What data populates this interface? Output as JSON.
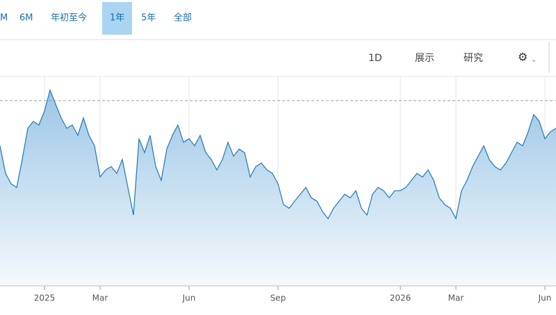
{
  "toolbar": {
    "ranges": [
      "M",
      "6M",
      "年初至今",
      "1年",
      "5年",
      "全部"
    ],
    "active": 3
  },
  "controls": [
    "1D",
    "展示",
    "研究"
  ],
  "chart_data": {
    "type": "area",
    "categories": [
      null,
      null,
      null,
      null,
      null,
      null,
      null,
      null,
      "2025",
      null,
      null,
      null,
      null,
      null,
      null,
      null,
      null,
      null,
      "Mar",
      null,
      null,
      null,
      null,
      null,
      null,
      null,
      null,
      null,
      null,
      null,
      null,
      null,
      null,
      null,
      "Jun",
      null,
      null,
      null,
      null,
      null,
      null,
      null,
      null,
      null,
      null,
      null,
      null,
      null,
      null,
      null,
      "Sep",
      null,
      null,
      null,
      null,
      null,
      null,
      null,
      null,
      null,
      null,
      null,
      null,
      null,
      null,
      null,
      null,
      null,
      null,
      null,
      null,
      null,
      "2026",
      null,
      null,
      null,
      null,
      null,
      null,
      null,
      null,
      null,
      "Mar",
      null,
      null,
      null,
      null,
      null,
      null,
      null,
      null,
      null,
      null,
      null,
      null,
      null,
      null,
      null,
      "Jun",
      null,
      null
    ],
    "series": [
      {
        "color": "#2b7fb8",
        "values": [
          67.3,
          54,
          49,
          47.3,
          60.7,
          75.7,
          79,
          77.3,
          84,
          94,
          87.3,
          80.7,
          75.7,
          77.3,
          72.3,
          80.7,
          72.3,
          67.3,
          52.3,
          55.7,
          57.3,
          54,
          60.7,
          47.3,
          34,
          70.7,
          64,
          72.3,
          57.3,
          50.7,
          65.7,
          72.3,
          77.3,
          69,
          70.7,
          67.3,
          72.3,
          64,
          60.7,
          55.7,
          60.7,
          69,
          62.3,
          65.7,
          64,
          52.3,
          57.3,
          59,
          55.7,
          54,
          49,
          39,
          37.3,
          40.7,
          44,
          47.3,
          42.3,
          40.7,
          35.7,
          32.3,
          37.3,
          40.7,
          44,
          42.3,
          45.7,
          37.3,
          34,
          44,
          47.3,
          45.7,
          42.3,
          45.7,
          45.7,
          47.3,
          50.7,
          54,
          52.3,
          55.7,
          50.7,
          42.3,
          39,
          37.3,
          32.3,
          45.7,
          50.7,
          57.3,
          62.3,
          67.3,
          60.7,
          57.3,
          55.7,
          59,
          64,
          69,
          67.3,
          74,
          82.3,
          79,
          70.7,
          74,
          75.7
        ]
      }
    ],
    "ylim": [
      0,
      100
    ],
    "reference_line": 89
  }
}
